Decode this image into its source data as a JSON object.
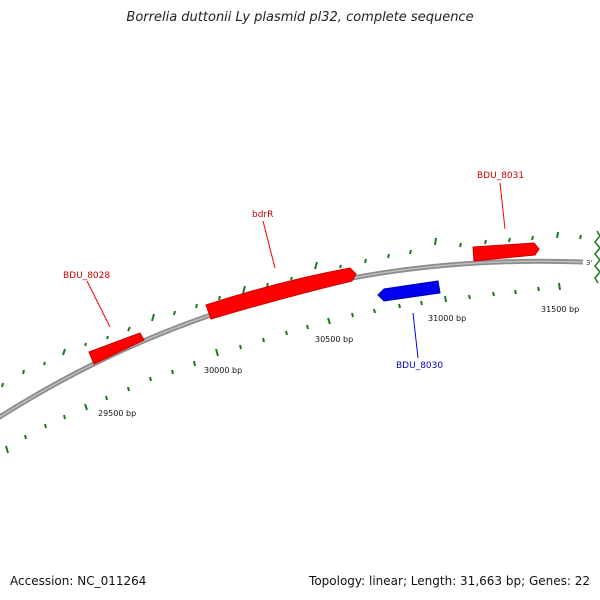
{
  "title": "Borrelia duttonii Ly plasmid pl32, complete sequence",
  "accession": "Accession: NC_011264",
  "summary": "Topology: linear; Length: 31,663 bp; Genes: 22",
  "end_marker": "3'",
  "scale_labels": [
    "29500 bp",
    "30000 bp",
    "30500 bp",
    "31000 bp",
    "31500 bp"
  ],
  "genes": [
    {
      "name": "BDU_8028",
      "strand": "forward",
      "color": "#ff0000"
    },
    {
      "name": "bdrR",
      "strand": "forward",
      "color": "#ff0000"
    },
    {
      "name": "BDU_8030",
      "strand": "reverse",
      "color": "#0000ff"
    },
    {
      "name": "BDU_8031",
      "strand": "forward",
      "color": "#ff0000"
    }
  ],
  "colors": {
    "backbone": "#8c8c8c",
    "tick": "#1a7a1a",
    "break": "#1a7a1a"
  }
}
